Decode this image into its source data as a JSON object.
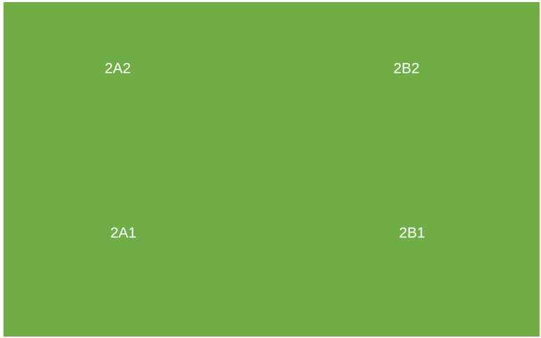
{
  "labels": [
    "2A2",
    "2B2",
    "2A1",
    "2B1"
  ]
}
